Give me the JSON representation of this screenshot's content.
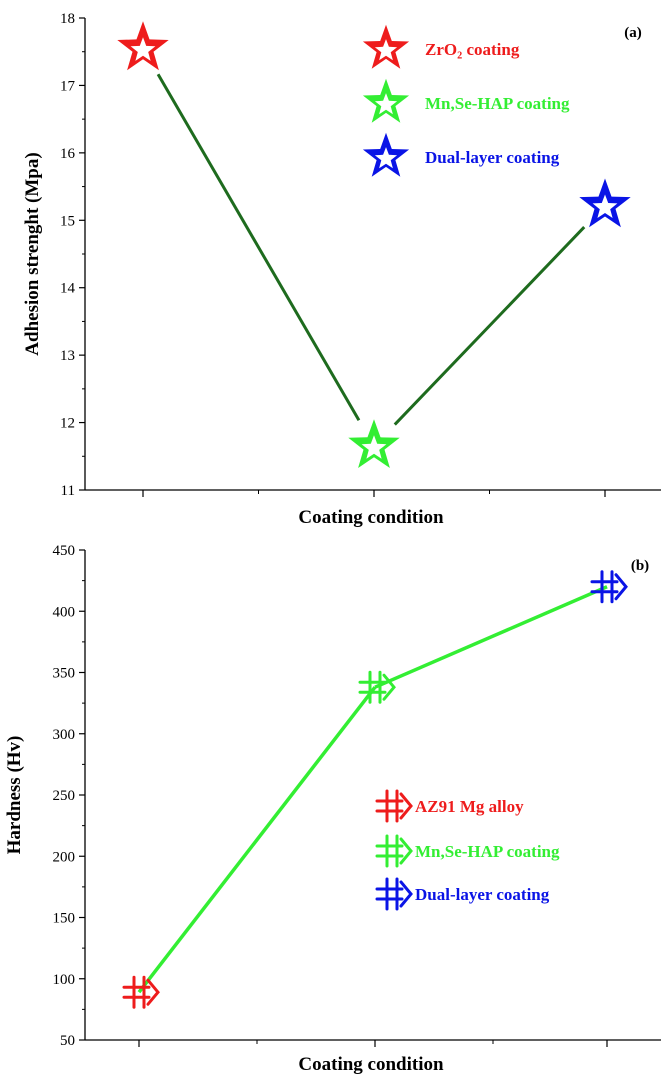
{
  "chart_data": [
    {
      "type": "line",
      "panel_label": "(a)",
      "xlabel": "Coating condition",
      "ylabel": "Adhesion strenght (Mpa)",
      "ylim": [
        11,
        18
      ],
      "yticks": [
        11,
        12,
        13,
        14,
        15,
        16,
        17,
        18
      ],
      "marker": "star",
      "line_color": "#1e6b1e",
      "points": [
        {
          "name": "ZrO₂ coating",
          "y": 17.55,
          "color": "#ee1c1c"
        },
        {
          "name": "Mn,Se-HAP coating",
          "y": 11.65,
          "color": "#33ee33"
        },
        {
          "name": "Dual-layer coating",
          "y": 15.22,
          "color": "#0a14e6"
        }
      ],
      "legend_position": "top-right"
    },
    {
      "type": "line",
      "panel_label": "(b)",
      "xlabel": "Coating condition",
      "ylabel": "Hardness (Hv)",
      "ylim": [
        50,
        450
      ],
      "yticks": [
        50,
        100,
        150,
        200,
        250,
        300,
        350,
        400,
        450
      ],
      "marker": "double-cross-arrow",
      "line_color": "#33ee33",
      "points": [
        {
          "name": "AZ91 Mg alloy",
          "y": 89,
          "color": "#ee1c1c"
        },
        {
          "name": "Mn,Se-HAP coating",
          "y": 338,
          "color": "#33ee33"
        },
        {
          "name": "Dual-layer coating",
          "y": 420,
          "color": "#0a14e6"
        }
      ],
      "legend_position": "center-right"
    }
  ]
}
